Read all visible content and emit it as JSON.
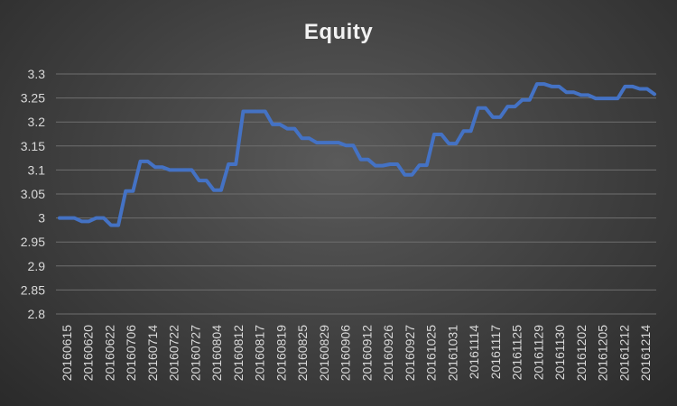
{
  "chart_data": {
    "type": "line",
    "title": "Equity",
    "xlabel": "",
    "ylabel": "",
    "ylim": [
      2.8,
      3.3
    ],
    "yticks": [
      "3.3",
      "3.25",
      "3.2",
      "3.15",
      "3.1",
      "3.05",
      "3",
      "2.95",
      "2.9",
      "2.85",
      "2.8"
    ],
    "grid": true,
    "legend": "none",
    "line_color": "#4472c4",
    "x_tick_labels": [
      "20160615",
      "20160620",
      "20160622",
      "20160706",
      "20160714",
      "20160722",
      "20160727",
      "20160804",
      "20160812",
      "20160817",
      "20160819",
      "20160825",
      "20160829",
      "20160906",
      "20160912",
      "20160926",
      "20160927",
      "20161025",
      "20161031",
      "20161114",
      "20161117",
      "20161125",
      "20161129",
      "20161130",
      "20161202",
      "20161205",
      "20161212",
      "20161214"
    ],
    "series": [
      {
        "values": [
          3.0,
          3.0,
          3.0,
          2.993,
          2.993,
          3.0,
          3.0,
          2.985,
          2.985,
          3.056,
          3.056,
          3.118,
          3.118,
          3.106,
          3.106,
          3.1,
          3.1,
          3.1,
          3.1,
          3.078,
          3.078,
          3.058,
          3.058,
          3.112,
          3.112,
          3.222,
          3.222,
          3.222,
          3.222,
          3.195,
          3.195,
          3.186,
          3.186,
          3.166,
          3.166,
          3.157,
          3.157,
          3.157,
          3.157,
          3.151,
          3.151,
          3.122,
          3.122,
          3.109,
          3.109,
          3.112,
          3.112,
          3.09,
          3.09,
          3.11,
          3.11,
          3.174,
          3.174,
          3.155,
          3.155,
          3.181,
          3.181,
          3.229,
          3.229,
          3.21,
          3.21,
          3.232,
          3.232,
          3.246,
          3.246,
          3.279,
          3.279,
          3.274,
          3.274,
          3.262,
          3.262,
          3.256,
          3.256,
          3.249,
          3.249,
          3.249,
          3.249,
          3.274,
          3.274,
          3.269,
          3.269,
          3.258
        ]
      }
    ]
  }
}
